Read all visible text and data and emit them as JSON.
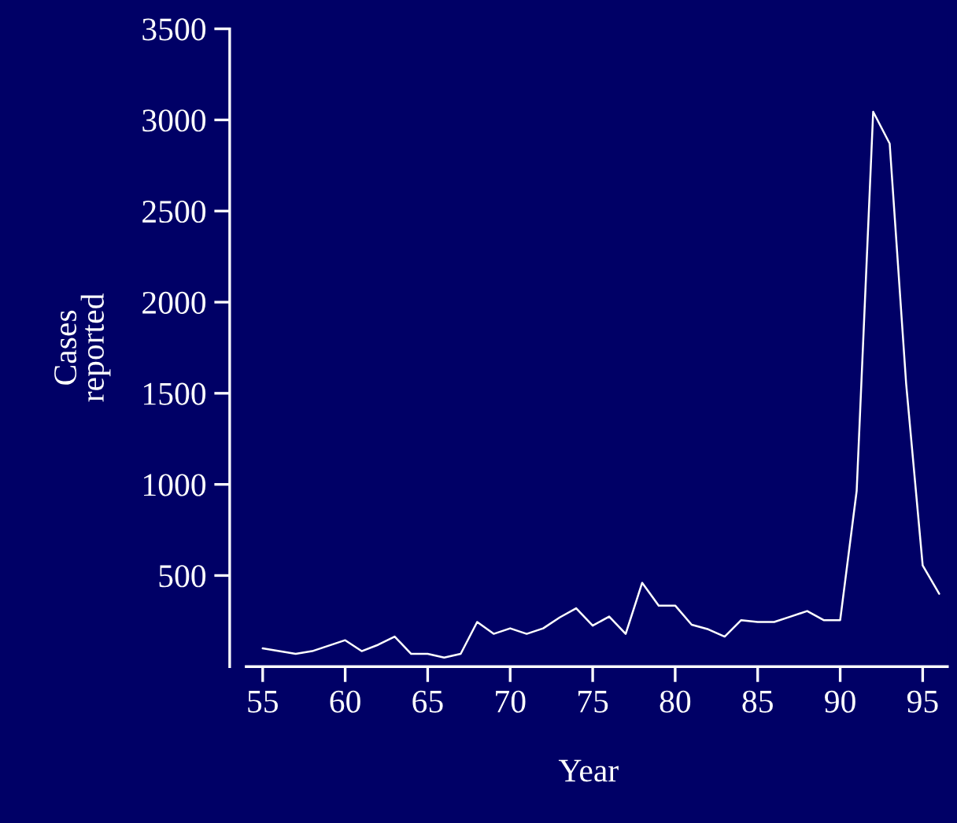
{
  "chart_data": {
    "type": "line",
    "xlabel": "Year",
    "ylabel": "Cases\nreported",
    "x": [
      55,
      56,
      57,
      58,
      59,
      60,
      61,
      62,
      63,
      64,
      65,
      66,
      67,
      68,
      69,
      70,
      71,
      72,
      73,
      74,
      75,
      76,
      77,
      78,
      79,
      80,
      81,
      82,
      83,
      84,
      85,
      86,
      87,
      88,
      89,
      90,
      91,
      92,
      93,
      94,
      95,
      96
    ],
    "series": [
      {
        "color": "#ffffff",
        "values": [
          100,
          85,
          70,
          85,
          115,
          145,
          85,
          120,
          165,
          70,
          70,
          50,
          70,
          245,
          180,
          210,
          180,
          210,
          270,
          320,
          225,
          275,
          180,
          460,
          335,
          335,
          230,
          205,
          165,
          255,
          245,
          245,
          275,
          305,
          255,
          255,
          965,
          3045,
          2870,
          1550,
          555,
          400
        ]
      }
    ],
    "xlim": [
      53,
      96.5
    ],
    "ylim": [
      0,
      3500
    ],
    "xticks": [
      55,
      60,
      65,
      70,
      75,
      80,
      85,
      90,
      95
    ],
    "yticks": [
      500,
      1000,
      1500,
      2000,
      2500,
      3000,
      3500
    ],
    "grid": false,
    "marker": "none",
    "line_style": "solid"
  }
}
